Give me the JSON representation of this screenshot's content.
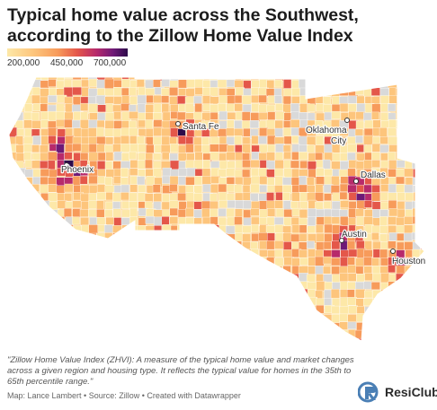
{
  "title": "Typical home value across the Southwest, according to the Zillow Home Value Index",
  "legend": {
    "ticks": [
      {
        "label": "200,000",
        "value": 200000
      },
      {
        "label": "450,000",
        "value": 450000
      },
      {
        "label": "700,000",
        "value": 700000
      }
    ],
    "range": [
      140000,
      800000
    ],
    "colors": [
      "#fde8a8",
      "#fdc57c",
      "#f79b5b",
      "#e4574a",
      "#b72a6b",
      "#6e1a77",
      "#2d0b4a"
    ]
  },
  "map": {
    "region": "Southwest United States (Arizona, New Mexico, Oklahoma, Texas)",
    "no_data_color": "#d9d9d9",
    "cities": [
      {
        "name": "Santa Fe",
        "label": "Santa Fe"
      },
      {
        "name": "Phoenix",
        "label": "Phoenix"
      },
      {
        "name": "Oklahoma City",
        "label_lines": [
          "Oklahoma",
          "City"
        ]
      },
      {
        "name": "Dallas",
        "label": "Dallas"
      },
      {
        "name": "Austin",
        "label": "Austin"
      },
      {
        "name": "Houston",
        "label": "Houston"
      }
    ]
  },
  "note": "\"Zillow Home Value Index (ZHVI): A measure of the typical home value and market changes across a given region and housing type. It reflects the typical value for homes in the 35th to 65th percentile range.\"",
  "credit": "Map: Lance Lambert • Source: Zillow • Created with Datawrapper",
  "brand": {
    "name": "ResiClub",
    "color": "#4a7fb5"
  }
}
